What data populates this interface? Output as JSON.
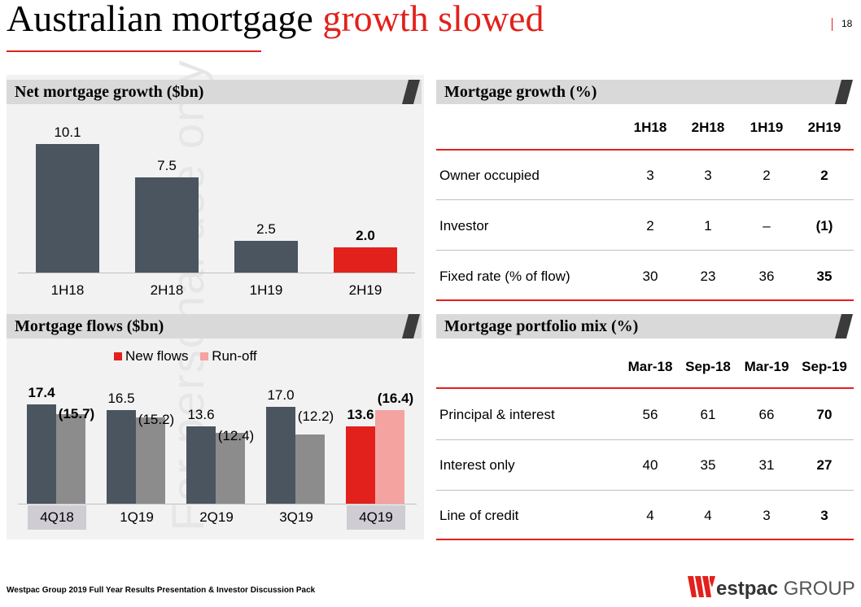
{
  "title": {
    "part1": "Australian mortgage ",
    "part2": "growth slowed"
  },
  "page_number": "18",
  "watermark": "For personal use only",
  "footer": "Westpac Group 2019 Full Year Results Presentation & Investor Discussion Pack",
  "logo": {
    "brand": "estpac",
    "group": "GROUP"
  },
  "colors": {
    "accent": "#e2211c",
    "dark": "#4a5560",
    "grey": "#8c8c8c",
    "pink": "#f4a3a0"
  },
  "chart_data": [
    {
      "type": "bar",
      "title": "Net mortgage growth ($bn)",
      "categories": [
        "1H18",
        "2H18",
        "1H19",
        "2H19"
      ],
      "values": [
        10.1,
        7.5,
        2.5,
        2.0
      ],
      "labels": [
        "10.1",
        "7.5",
        "2.5",
        "2.0"
      ],
      "ylim": [
        0,
        12
      ],
      "highlight_last": true
    },
    {
      "type": "bar",
      "title": "Mortgage flows ($bn)",
      "categories": [
        "4Q18",
        "1Q19",
        "2Q19",
        "3Q19",
        "4Q19"
      ],
      "legend": [
        "New flows",
        "Run-off"
      ],
      "series": [
        {
          "name": "New flows",
          "values": [
            17.4,
            16.5,
            13.6,
            17.0,
            13.6
          ],
          "labels": [
            "17.4",
            "16.5",
            "13.6",
            "17.0",
            "13.6"
          ]
        },
        {
          "name": "Run-off",
          "values": [
            -15.7,
            -15.2,
            -12.4,
            -12.2,
            -16.4
          ],
          "labels": [
            "(15.7)",
            "(15.2)",
            "(12.4)",
            "(12.2)",
            "(16.4)"
          ]
        }
      ],
      "ylim": [
        0,
        20
      ]
    }
  ],
  "growth_table": {
    "title": "Mortgage growth (%)",
    "headers": [
      "1H18",
      "2H18",
      "1H19",
      "2H19"
    ],
    "rows": [
      {
        "label": "Owner occupied",
        "values": [
          "3",
          "3",
          "2",
          "2"
        ]
      },
      {
        "label": "Investor",
        "values": [
          "2",
          "1",
          "–",
          "(1)"
        ]
      },
      {
        "label": "Fixed rate (% of flow)",
        "values": [
          "30",
          "23",
          "36",
          "35"
        ]
      }
    ]
  },
  "mix_table": {
    "title": "Mortgage portfolio mix (%)",
    "headers": [
      "Mar-18",
      "Sep-18",
      "Mar-19",
      "Sep-19"
    ],
    "rows": [
      {
        "label": "Principal & interest",
        "values": [
          "56",
          "61",
          "66",
          "70"
        ]
      },
      {
        "label": "Interest only",
        "values": [
          "40",
          "35",
          "31",
          "27"
        ]
      },
      {
        "label": "Line of credit",
        "values": [
          "4",
          "4",
          "3",
          "3"
        ]
      }
    ]
  }
}
